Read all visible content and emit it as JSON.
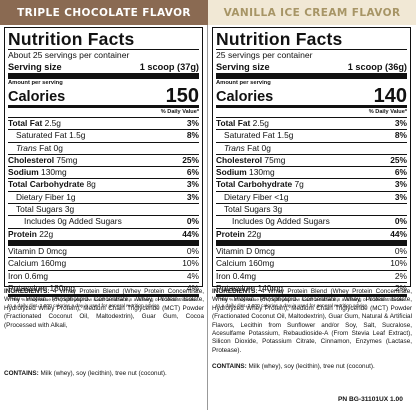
{
  "colors": {
    "left_accent": "#8a6a52",
    "right_accent": "#f1e8d5",
    "right_text": "#a79566"
  },
  "left": {
    "flavor": "TRIPLE CHOCOLATE FLAVOR",
    "title": "Nutrition Facts",
    "servings": "About 25 servings per container",
    "serving_size_label": "Serving size",
    "serving_size_value": "1 scoop (37g)",
    "amount_label": "Amount per serving",
    "calories_label": "Calories",
    "calories_value": "150",
    "dv_header": "% Daily Value*",
    "nutrients": [
      {
        "name": "Total Fat",
        "amount": "2.5g",
        "pct": "3%"
      },
      {
        "name": "Saturated Fat",
        "amount": "1.5g",
        "pct": "8%"
      },
      {
        "name": "Trans",
        "amount": "Fat 0g",
        "pct": ""
      },
      {
        "name": "Cholesterol",
        "amount": "75mg",
        "pct": "25%"
      },
      {
        "name": "Sodium",
        "amount": "130mg",
        "pct": "6%"
      },
      {
        "name": "Total Carbohydrate",
        "amount": "8g",
        "pct": "3%"
      },
      {
        "name": "Dietary Fiber",
        "amount": "1g",
        "pct": "3%"
      },
      {
        "name": "Total Sugars",
        "amount": "3g",
        "pct": ""
      },
      {
        "name": "Includes 0g Added Sugars",
        "amount": "",
        "pct": "0%"
      },
      {
        "name": "Protein",
        "amount": "22g",
        "pct": "44%"
      }
    ],
    "vitamins": [
      {
        "name": "Vitamin D",
        "amount": "0mcg",
        "pct": "0%"
      },
      {
        "name": "Calcium",
        "amount": "160mg",
        "pct": "10%"
      },
      {
        "name": "Iron",
        "amount": "0.6mg",
        "pct": "4%"
      },
      {
        "name": "Potassium",
        "amount": "180mg",
        "pct": "4%"
      }
    ],
    "footnote": "* The % Daily Value (DV) tells you how much a nutrient in a serving of food contributes to a daily diet. 2,000 calories a day is used for general nutrition advice.",
    "ingredients_label": "INGREDIENTS:",
    "ingredients_text": "4 Whey Protein Blend (Whey Protein Concentrate, Whey Protein Phospholipid Concentrate, Whey Protein Isolate, Hydrolyzed Whey Protein), Medium Chain Triglyceride (MCT) Powder (Fractionated Coconut Oil, Maltodextrin), Guar Gum, Cocoa (Processed with Alkali,",
    "contains_label": "CONTAINS:",
    "contains_text": "Milk (whey), soy (lecithin), tree nut (coconut)."
  },
  "right": {
    "flavor": "VANILLA ICE CREAM FLAVOR",
    "title": "Nutrition Facts",
    "servings": "25 servings per container",
    "serving_size_label": "Serving size",
    "serving_size_value": "1 scoop (36g)",
    "amount_label": "Amount per serving",
    "calories_label": "Calories",
    "calories_value": "140",
    "dv_header": "% Daily Value*",
    "nutrients": [
      {
        "name": "Total Fat",
        "amount": "2.5g",
        "pct": "3%"
      },
      {
        "name": "Saturated Fat",
        "amount": "1.5g",
        "pct": "8%"
      },
      {
        "name": "Trans",
        "amount": "Fat 0g",
        "pct": ""
      },
      {
        "name": "Cholesterol",
        "amount": "75mg",
        "pct": "25%"
      },
      {
        "name": "Sodium",
        "amount": "130mg",
        "pct": "6%"
      },
      {
        "name": "Total Carbohydrate",
        "amount": "7g",
        "pct": "3%"
      },
      {
        "name": "Dietary Fiber",
        "amount": "<1g",
        "pct": "3%"
      },
      {
        "name": "Total Sugars",
        "amount": "3g",
        "pct": ""
      },
      {
        "name": "Includes 0g Added Sugars",
        "amount": "",
        "pct": "0%"
      },
      {
        "name": "Protein",
        "amount": "22g",
        "pct": "44%"
      }
    ],
    "vitamins": [
      {
        "name": "Vitamin D",
        "amount": "0mcg",
        "pct": "0%"
      },
      {
        "name": "Calcium",
        "amount": "160mg",
        "pct": "10%"
      },
      {
        "name": "Iron",
        "amount": "0.4mg",
        "pct": "2%"
      },
      {
        "name": "Potassium",
        "amount": "140mg",
        "pct": "2%"
      }
    ],
    "footnote": "* The % Daily Value (DV) tells you how much a nutrient in a serving of food contributes to a daily diet. 2,000 calories a day is used for general nutrition advice.",
    "ingredients_label": "INGREDIENTS:",
    "ingredients_text": "4 Whey Protein Blend (Whey Protein Concentrate, Whey Protein Phospholipid Concentrate, Whey Protein Isolate, Hydrolyzed Whey Protein), Medium Chain Triglyceride (MCT) Powder (Fractionated Coconut Oil, Maltodextrin), Guar Gum, Natural & Artificial Flavors, Lecithin from Sunflower and/or Soy, Salt, Sucralose, Acesulfame Potassium, Rebaudioside-A (From Stevia Leaf Extract), Silicon Dioxide, Potassium Citrate, Cinnamon, Enzymes (Lactase, Protease).",
    "contains_label": "CONTAINS:",
    "contains_text": "Milk (whey), soy (lecithin), tree nut (coconut)."
  },
  "part_number": "PN BG-31101UX 1.00"
}
